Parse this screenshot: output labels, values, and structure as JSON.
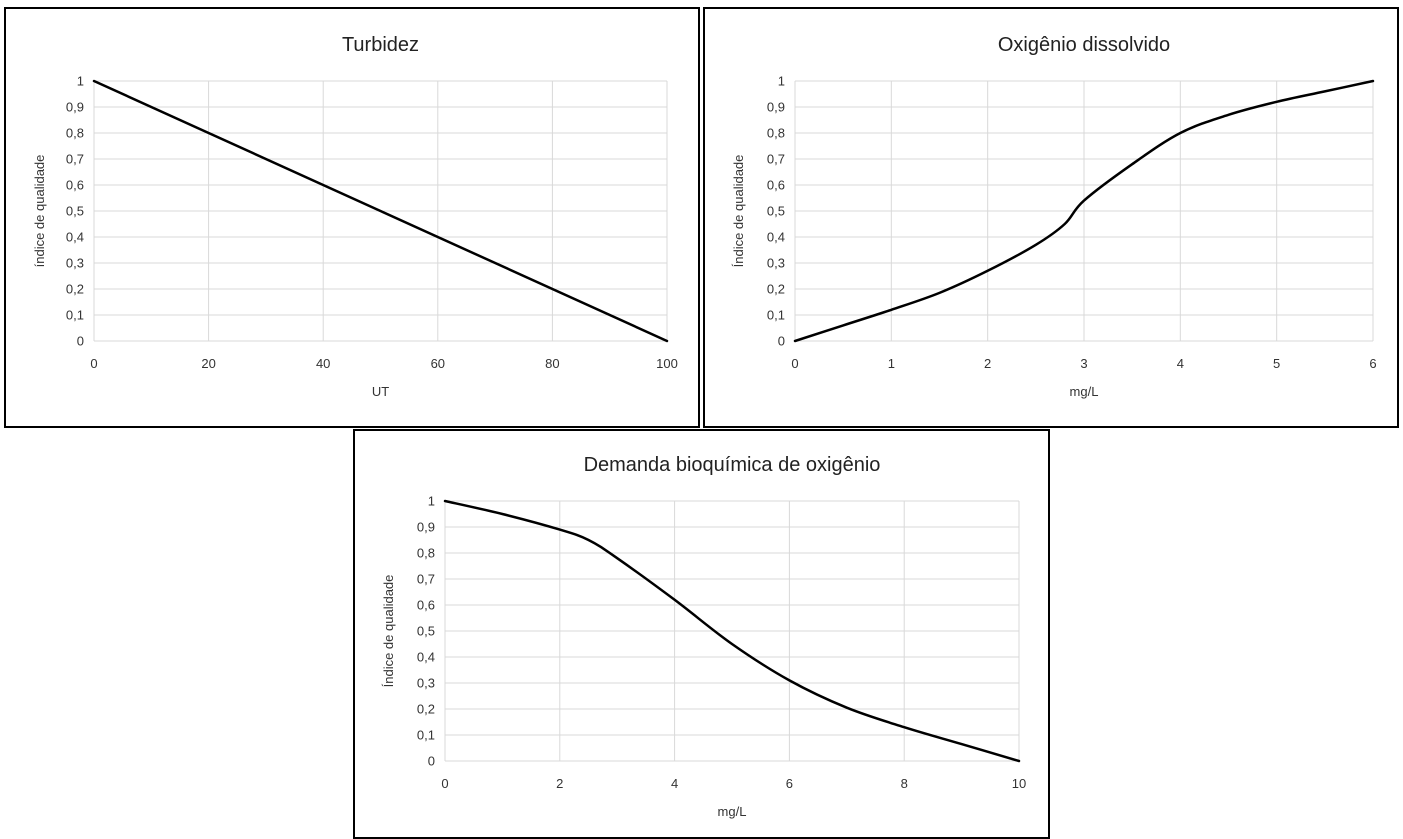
{
  "chart_data": [
    {
      "type": "line",
      "title": "Turbidez",
      "xlabel": "UT",
      "ylabel": "índice de qualidade",
      "xlim": [
        0,
        100
      ],
      "ylim": [
        0,
        1
      ],
      "x_ticks": [
        "0",
        "20",
        "40",
        "60",
        "80",
        "100"
      ],
      "y_ticks": [
        "0",
        "0,1",
        "0,2",
        "0,3",
        "0,4",
        "0,5",
        "0,6",
        "0,7",
        "0,8",
        "0,9",
        "1"
      ],
      "grid": true,
      "series": [
        {
          "x": [
            0,
            100
          ],
          "y": [
            1,
            0
          ]
        }
      ]
    },
    {
      "type": "line",
      "title": "Oxigênio dissolvido",
      "xlabel": "mg/L",
      "ylabel": "Índice de qualidade",
      "xlim": [
        0,
        6
      ],
      "ylim": [
        0,
        1
      ],
      "x_ticks": [
        "0",
        "1",
        "2",
        "3",
        "4",
        "5",
        "6"
      ],
      "y_ticks": [
        "0",
        "0,1",
        "0,2",
        "0,3",
        "0,4",
        "0,5",
        "0,6",
        "0,7",
        "0,8",
        "0,9",
        "1"
      ],
      "grid": true,
      "series": [
        {
          "x": [
            0,
            0.5,
            1,
            1.5,
            2,
            2.5,
            2.8,
            3,
            3.5,
            4,
            4.5,
            5,
            5.5,
            6
          ],
          "y": [
            0,
            0.06,
            0.12,
            0.185,
            0.27,
            0.37,
            0.45,
            0.54,
            0.68,
            0.8,
            0.87,
            0.92,
            0.96,
            1
          ]
        }
      ]
    },
    {
      "type": "line",
      "title": "Demanda bioquímica de oxigênio",
      "xlabel": "mg/L",
      "ylabel": "Índice de qualidade",
      "xlim": [
        0,
        10
      ],
      "ylim": [
        0,
        1
      ],
      "x_ticks": [
        "0",
        "2",
        "4",
        "6",
        "8",
        "10"
      ],
      "y_ticks": [
        "0",
        "0,1",
        "0,2",
        "0,3",
        "0,4",
        "0,5",
        "0,6",
        "0,7",
        "0,8",
        "0,9",
        "1"
      ],
      "grid": true,
      "series": [
        {
          "x": [
            0,
            1,
            2,
            2.5,
            3,
            4,
            5,
            6,
            7,
            8,
            9,
            10
          ],
          "y": [
            1,
            0.95,
            0.89,
            0.85,
            0.78,
            0.62,
            0.45,
            0.31,
            0.205,
            0.13,
            0.065,
            0
          ]
        }
      ]
    }
  ]
}
